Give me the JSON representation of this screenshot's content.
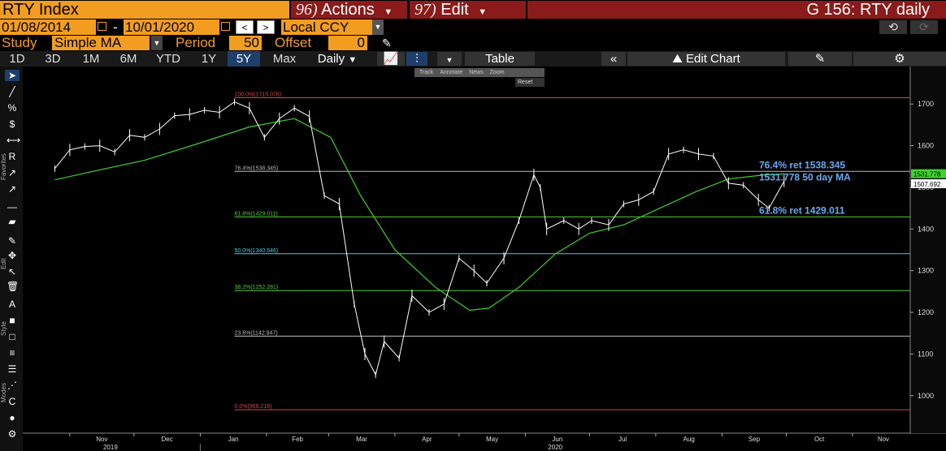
{
  "header": {
    "ticker": "RTY Index",
    "actions_num": "96)",
    "actions_label": "Actions",
    "edit_num": "97)",
    "edit_label": "Edit",
    "title": "G 156: RTY daily"
  },
  "controls": {
    "start_date": "01/08/2014",
    "date_separator": "-",
    "end_date": "10/01/2020",
    "prev": "<",
    "next": ">",
    "currency": "Local CCY",
    "back_icon": "undo-icon",
    "forward_icon": "redo-icon"
  },
  "study": {
    "label": "Study",
    "value": "Simple MA",
    "period_label": "Period",
    "period_value": "50",
    "offset_label": "Offset",
    "offset_value": "0"
  },
  "toolbar": {
    "timeframes": [
      "1D",
      "3D",
      "1M",
      "6M",
      "YTD",
      "1Y",
      "5Y",
      "Max"
    ],
    "active_timeframe": "5Y",
    "frequency": "Daily",
    "table_label": "Table",
    "edit_chart_label": "Edit Chart"
  },
  "left_toolbar": {
    "favorites_label": "Favorites",
    "edit_label": "Edit",
    "style_label": "Style",
    "modes_label": "Modes"
  },
  "mini_toolbar": {
    "items": [
      "Track",
      "Annotate",
      "News",
      "Zoom"
    ],
    "reset": "Reset"
  },
  "chart_data": {
    "type": "line",
    "title": "",
    "price_series": "RTY Index",
    "ylim": [
      910,
      1790
    ],
    "y_ticks": [
      1000,
      1100,
      1200,
      1300,
      1400,
      1500,
      1600,
      1700
    ],
    "x_months": [
      "Nov",
      "Dec",
      "Jan",
      "Feb",
      "Mar",
      "Apr",
      "May",
      "Jun",
      "Jul",
      "Aug",
      "Sep",
      "Oct",
      "Nov"
    ],
    "x_years": [
      "2019",
      "2020"
    ],
    "price_x": [
      "2019-10-25",
      "2019-11-01",
      "2019-11-08",
      "2019-11-15",
      "2019-11-22",
      "2019-11-29",
      "2019-12-06",
      "2019-12-13",
      "2019-12-20",
      "2019-12-27",
      "2020-01-03",
      "2020-01-10",
      "2020-01-17",
      "2020-01-24",
      "2020-01-31",
      "2020-02-07",
      "2020-02-14",
      "2020-02-21",
      "2020-02-28",
      "2020-03-06",
      "2020-03-13",
      "2020-03-18",
      "2020-03-23",
      "2020-03-27",
      "2020-04-03",
      "2020-04-09",
      "2020-04-17",
      "2020-04-24",
      "2020-05-01",
      "2020-05-08",
      "2020-05-14",
      "2020-05-22",
      "2020-05-29",
      "2020-06-05",
      "2020-06-08",
      "2020-06-11",
      "2020-06-19",
      "2020-06-26",
      "2020-07-02",
      "2020-07-10",
      "2020-07-17",
      "2020-07-24",
      "2020-07-31",
      "2020-08-07",
      "2020-08-14",
      "2020-08-21",
      "2020-08-28",
      "2020-09-04",
      "2020-09-11",
      "2020-09-18",
      "2020-09-23",
      "2020-09-30"
    ],
    "price_y": [
      1545,
      1590,
      1598,
      1600,
      1585,
      1625,
      1620,
      1640,
      1672,
      1675,
      1685,
      1680,
      1705,
      1690,
      1620,
      1665,
      1690,
      1670,
      1480,
      1460,
      1220,
      1100,
      1050,
      1130,
      1090,
      1240,
      1200,
      1220,
      1330,
      1300,
      1270,
      1330,
      1420,
      1530,
      1500,
      1400,
      1420,
      1400,
      1420,
      1410,
      1460,
      1470,
      1490,
      1580,
      1590,
      1580,
      1575,
      1510,
      1505,
      1470,
      1450,
      1515
    ],
    "ma_x": [
      "2019-10-25",
      "2019-11-15",
      "2019-12-06",
      "2019-12-31",
      "2020-01-24",
      "2020-02-14",
      "2020-03-02",
      "2020-03-16",
      "2020-04-01",
      "2020-04-20",
      "2020-05-06",
      "2020-05-15",
      "2020-05-29",
      "2020-06-15",
      "2020-07-01",
      "2020-07-17",
      "2020-08-03",
      "2020-08-20",
      "2020-09-04",
      "2020-09-21",
      "2020-09-30"
    ],
    "ma_y": [
      1518,
      1542,
      1565,
      1605,
      1645,
      1665,
      1620,
      1480,
      1350,
      1260,
      1205,
      1210,
      1260,
      1340,
      1390,
      1410,
      1450,
      1490,
      1520,
      1530,
      1532
    ],
    "fibonacci": [
      {
        "label": "100.0%(1715.076)",
        "value": 1715.076,
        "color": "#d0484a"
      },
      {
        "label": "76.4%(1538.345)",
        "value": 1538.345,
        "color": "#bbbbbb"
      },
      {
        "label": "61.8%(1429.011)",
        "value": 1429.011,
        "color": "#5acb39"
      },
      {
        "label": "50.0%(1340.646)",
        "value": 1340.646,
        "color": "#4fc9e8"
      },
      {
        "label": "38.2%(1252.281)",
        "value": 1252.281,
        "color": "#5acb39"
      },
      {
        "label": "23.6%(1142.947)",
        "value": 1142.947,
        "color": "#bbbbbb"
      },
      {
        "label": "0.0%(966.216)",
        "value": 966.216,
        "color": "#d0484a"
      }
    ],
    "annotations": [
      "76.4% ret 1538.345",
      "1531.778 50 day MA",
      "61.8% ret 1429.011"
    ],
    "last_price_tag": "1507.692",
    "ma_tag": "1531.778",
    "colors": {
      "price": "#ffffff",
      "ma": "#3fd12c",
      "annotation": "#6aaaf0"
    }
  }
}
